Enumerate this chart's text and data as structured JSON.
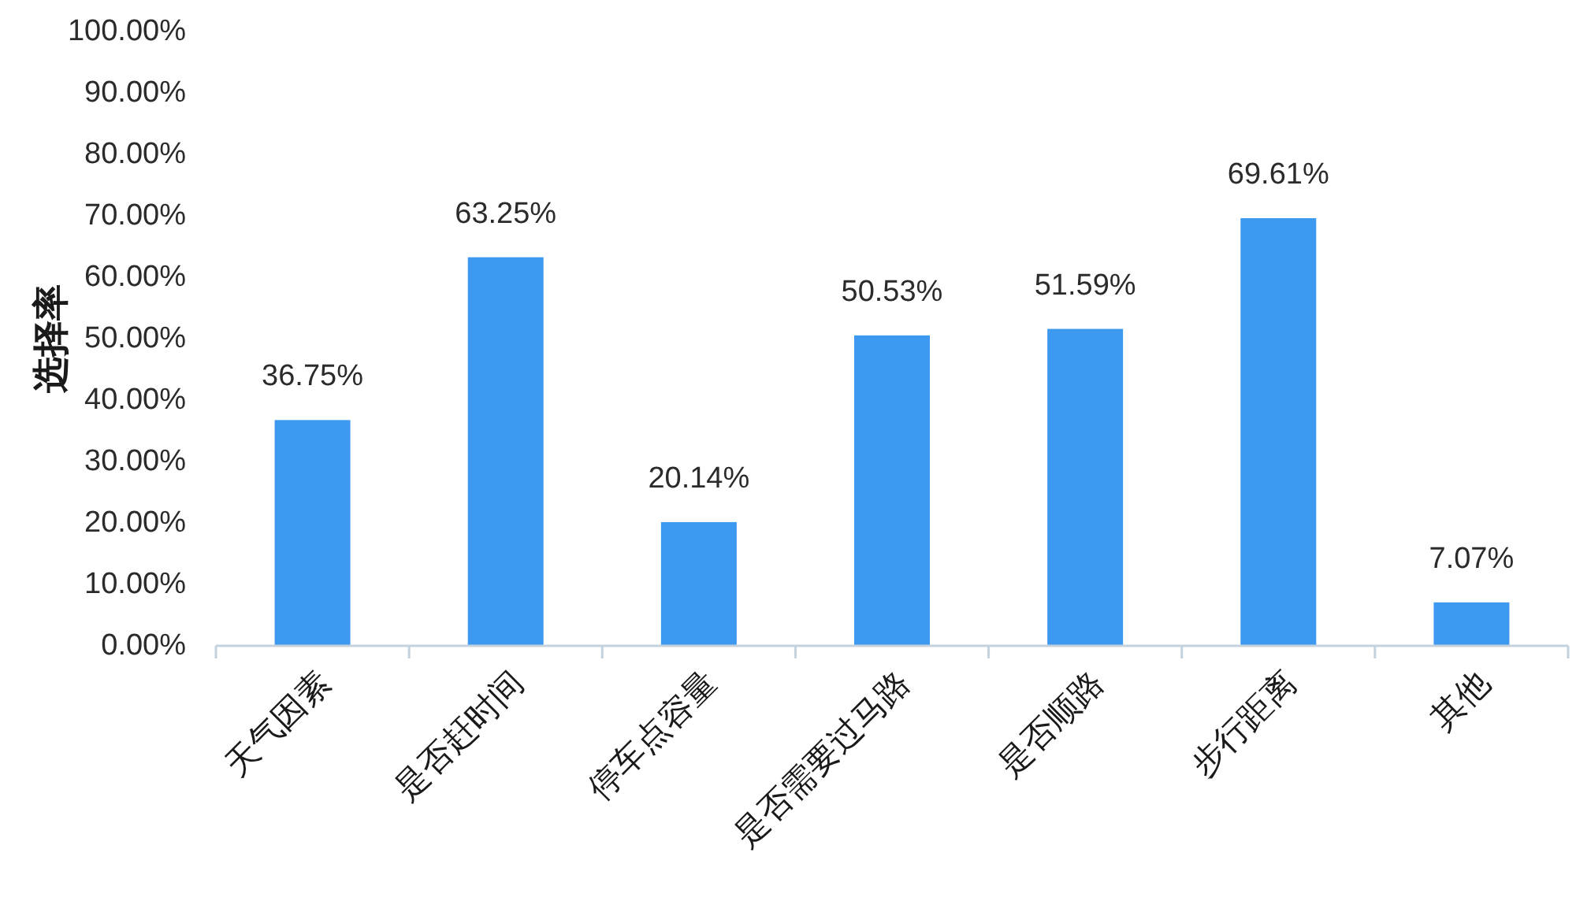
{
  "chart_data": {
    "type": "bar",
    "ylabel": "选择率",
    "categories": [
      "天气因素",
      "是否赶时间",
      "停车点容量",
      "是否需要过马路",
      "是否顺路",
      "步行距离",
      "其他"
    ],
    "values": [
      36.75,
      63.25,
      20.14,
      50.53,
      51.59,
      69.61,
      7.07
    ],
    "value_labels": [
      "36.75%",
      "63.25%",
      "20.14%",
      "50.53%",
      "51.59%",
      "69.61%",
      "7.07%"
    ],
    "color": "#3d98f0",
    "ylim": [
      0,
      100
    ],
    "yticks": [
      {
        "value": 0,
        "label": "0.00%"
      },
      {
        "value": 10,
        "label": "10.00%"
      },
      {
        "value": 20,
        "label": "20.00%"
      },
      {
        "value": 30,
        "label": "30.00%"
      },
      {
        "value": 40,
        "label": "40.00%"
      },
      {
        "value": 50,
        "label": "50.00%"
      },
      {
        "value": 60,
        "label": "60.00%"
      },
      {
        "value": 70,
        "label": "70.00%"
      },
      {
        "value": 80,
        "label": "80.00%"
      },
      {
        "value": 90,
        "label": "90.00%"
      },
      {
        "value": 100,
        "label": "100.00%"
      }
    ]
  }
}
